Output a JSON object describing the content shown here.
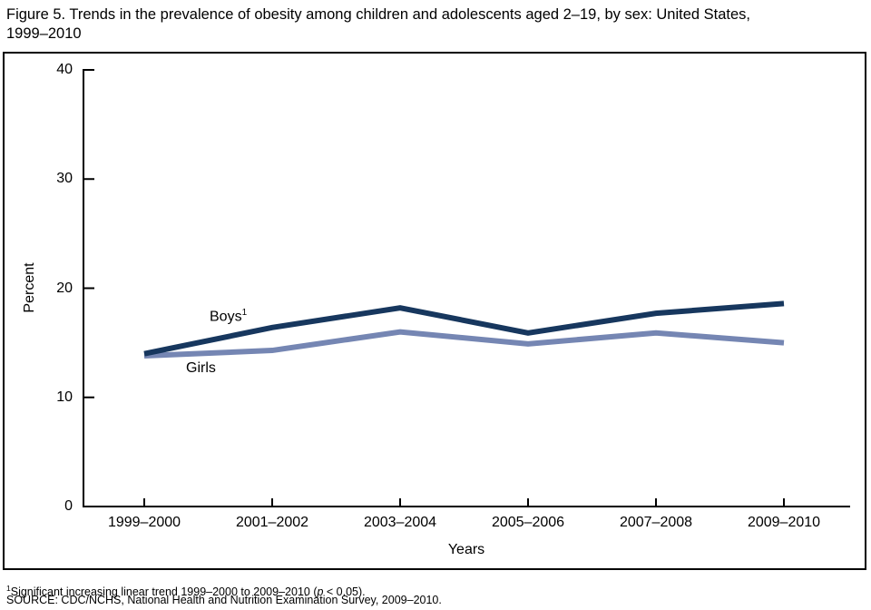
{
  "title": {
    "line1": "Figure 5. Trends in the prevalence of obesity among children and adolescents aged 2–19, by sex: United States,",
    "line2": "1999–2010"
  },
  "chart_data": {
    "type": "line",
    "title": "Figure 5. Trends in the prevalence of obesity among children and adolescents aged 2–19, by sex: United States, 1999–2010",
    "categories": [
      "1999–2000",
      "2001–2002",
      "2003–2004",
      "2005–2006",
      "2007–2008",
      "2009–2010"
    ],
    "series": [
      {
        "name": "Boys",
        "footnote_marker": "1",
        "color": "#17375e",
        "values": [
          14.0,
          16.4,
          18.2,
          15.9,
          17.7,
          18.6
        ]
      },
      {
        "name": "Girls",
        "footnote_marker": "",
        "color": "#7586b3",
        "values": [
          13.8,
          14.3,
          16.0,
          14.9,
          15.9,
          15.0
        ]
      }
    ],
    "xlabel": "Years",
    "ylabel": "Percent",
    "ylim": [
      0,
      40
    ],
    "yticks": [
      0,
      10,
      20,
      30,
      40
    ],
    "grid": false,
    "legend": "inline-labels",
    "axis_color": "#000000",
    "background_color": "#ffffff"
  },
  "footnotes": {
    "fn1_sup": "1",
    "fn1_pre": "Significant increasing linear trend 1999–2000 to 2009–2010 (",
    "fn1_italic": "p",
    "fn1_post": " < 0.05).",
    "source": "SOURCE: CDC/NCHS, National Health and Nutrition Examination Survey, 2009–2010."
  }
}
